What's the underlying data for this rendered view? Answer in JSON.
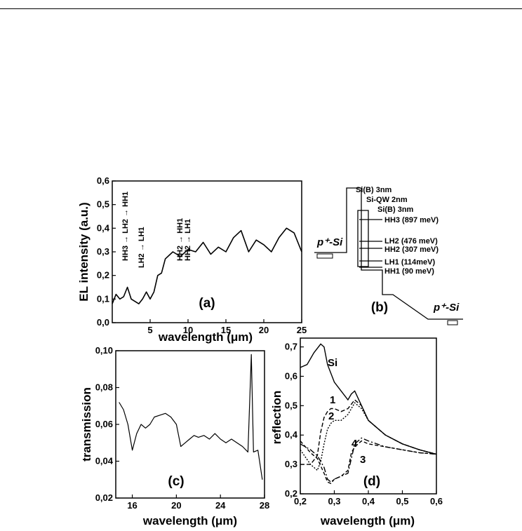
{
  "panel_a": {
    "panel_label": "(a)",
    "xlabel": "wavelength (μm)",
    "ylabel": "EL intensity (a.u.)",
    "yticks": [
      "0,0",
      "0,1",
      "0,2",
      "0,3",
      "0,4",
      "0,5",
      "0,6"
    ],
    "xticks": [
      "5",
      "10",
      "15",
      "20",
      "25"
    ],
    "annotations": [
      "HH3 → LH2 → HH1",
      "LH2 → LH1",
      "HH2 → HH1",
      "HH2 → LH1"
    ]
  },
  "panel_b": {
    "panel_label": "(b)",
    "labels": [
      "Si(B) 3nm",
      "Si-QW 2nm",
      "Si(B) 3nm",
      "HH3 (897 meV)",
      "LH2 (476 meV)",
      "HH2 (307 meV)",
      "LH1 (114meV)",
      "HH1 (90 meV)"
    ],
    "contact_left": "p⁺-Si",
    "contact_right": "p⁺-Si"
  },
  "panel_c": {
    "panel_label": "(c)",
    "xlabel": "wavelength (μm)",
    "ylabel": "transmission",
    "yticks": [
      "0,02",
      "0,04",
      "0,06",
      "0,08",
      "0,10"
    ],
    "xticks": [
      "16",
      "20",
      "24",
      "28"
    ]
  },
  "panel_d": {
    "panel_label": "(d)",
    "xlabel": "wavelength (μm)",
    "ylabel": "reflection",
    "yticks": [
      "0,2",
      "0,3",
      "0,4",
      "0,5",
      "0,6",
      "0,7"
    ],
    "xticks": [
      "0,2",
      "0,3",
      "0,4",
      "0,5",
      "0,6"
    ],
    "curve_labels": [
      "Si",
      "1",
      "2",
      "3",
      "4"
    ]
  },
  "chart_data": [
    {
      "type": "line",
      "xlim": [
        0,
        25
      ],
      "ylim": [
        0,
        0.6
      ],
      "series": [
        {
          "x": [
            0,
            0.5,
            1,
            1.5,
            2,
            2.5,
            3,
            3.5,
            4,
            4.5,
            5,
            5.5,
            6,
            6.5,
            7,
            8,
            9,
            10,
            11,
            12,
            13,
            14,
            15,
            16,
            17,
            18,
            19,
            20,
            21,
            22,
            23,
            24,
            25
          ],
          "y": [
            0.08,
            0.12,
            0.1,
            0.11,
            0.15,
            0.1,
            0.09,
            0.08,
            0.1,
            0.13,
            0.1,
            0.13,
            0.2,
            0.21,
            0.27,
            0.3,
            0.28,
            0.31,
            0.3,
            0.34,
            0.29,
            0.32,
            0.3,
            0.36,
            0.39,
            0.3,
            0.35,
            0.33,
            0.3,
            0.36,
            0.4,
            0.38,
            0.3
          ]
        }
      ]
    },
    {
      "type": "line",
      "xlim": [
        14.5,
        28
      ],
      "ylim": [
        0.02,
        0.1
      ],
      "series": [
        {
          "x": [
            14.8,
            15.2,
            15.6,
            16,
            16.4,
            16.8,
            17.2,
            17.6,
            18,
            18.5,
            19,
            19.5,
            20,
            20.4,
            20.8,
            21.2,
            21.6,
            22,
            22.5,
            23,
            23.5,
            24,
            24.5,
            25,
            25.5,
            26,
            26.5,
            26.8,
            27,
            27.4,
            27.8
          ],
          "y": [
            0.072,
            0.068,
            0.06,
            0.046,
            0.055,
            0.06,
            0.058,
            0.06,
            0.064,
            0.065,
            0.066,
            0.064,
            0.06,
            0.048,
            0.05,
            0.052,
            0.054,
            0.053,
            0.054,
            0.052,
            0.055,
            0.052,
            0.05,
            0.052,
            0.05,
            0.048,
            0.045,
            0.098,
            0.045,
            0.046,
            0.03
          ]
        }
      ]
    },
    {
      "type": "line",
      "xlim": [
        0.2,
        0.6
      ],
      "ylim": [
        0.2,
        0.73
      ],
      "series": [
        {
          "name": "Si",
          "x": [
            0.2,
            0.22,
            0.24,
            0.26,
            0.27,
            0.28,
            0.3,
            0.32,
            0.34,
            0.35,
            0.36,
            0.38,
            0.4,
            0.45,
            0.5,
            0.55,
            0.6
          ],
          "y": [
            0.63,
            0.64,
            0.68,
            0.71,
            0.7,
            0.64,
            0.58,
            0.55,
            0.52,
            0.54,
            0.55,
            0.5,
            0.45,
            0.4,
            0.37,
            0.35,
            0.335
          ]
        },
        {
          "name": "1",
          "x": [
            0.2,
            0.23,
            0.25,
            0.26,
            0.27,
            0.28,
            0.29,
            0.3,
            0.32,
            0.34,
            0.36,
            0.38,
            0.4,
            0.45,
            0.5,
            0.55,
            0.6
          ],
          "y": [
            0.3,
            0.3,
            0.33,
            0.41,
            0.46,
            0.48,
            0.49,
            0.49,
            0.48,
            0.49,
            0.52,
            0.5,
            0.45,
            0.4,
            0.37,
            0.35,
            0.335
          ]
        },
        {
          "name": "2",
          "x": [
            0.2,
            0.23,
            0.25,
            0.26,
            0.27,
            0.28,
            0.29,
            0.3,
            0.32,
            0.34,
            0.36,
            0.38,
            0.4,
            0.45,
            0.5,
            0.55,
            0.6
          ],
          "y": [
            0.35,
            0.3,
            0.28,
            0.31,
            0.37,
            0.42,
            0.44,
            0.45,
            0.45,
            0.47,
            0.51,
            0.49,
            0.45,
            0.4,
            0.37,
            0.35,
            0.335
          ]
        },
        {
          "name": "3",
          "x": [
            0.2,
            0.23,
            0.25,
            0.27,
            0.28,
            0.29,
            0.3,
            0.32,
            0.34,
            0.35,
            0.36,
            0.38,
            0.4,
            0.45,
            0.5,
            0.55,
            0.6
          ],
          "y": [
            0.38,
            0.34,
            0.32,
            0.27,
            0.24,
            0.235,
            0.25,
            0.26,
            0.28,
            0.34,
            0.36,
            0.38,
            0.37,
            0.36,
            0.35,
            0.34,
            0.335
          ]
        },
        {
          "name": "4",
          "x": [
            0.2,
            0.23,
            0.25,
            0.27,
            0.28,
            0.29,
            0.3,
            0.32,
            0.34,
            0.35,
            0.36,
            0.38,
            0.4,
            0.45,
            0.5,
            0.55,
            0.6
          ],
          "y": [
            0.37,
            0.35,
            0.33,
            0.29,
            0.25,
            0.24,
            0.25,
            0.26,
            0.27,
            0.32,
            0.37,
            0.39,
            0.38,
            0.36,
            0.35,
            0.34,
            0.335
          ]
        }
      ]
    }
  ]
}
